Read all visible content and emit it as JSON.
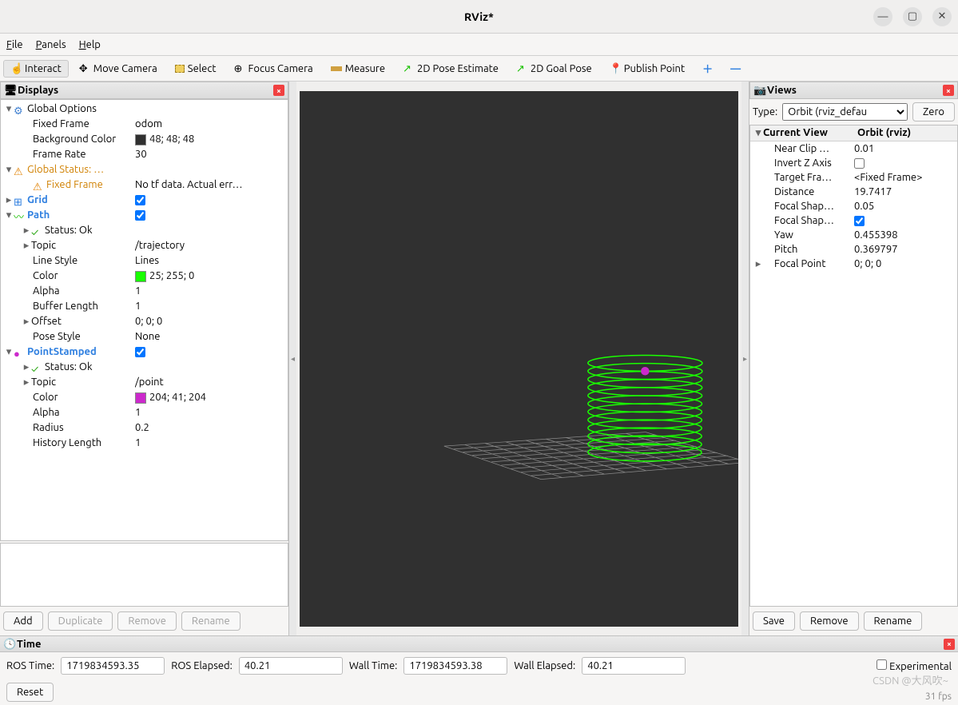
{
  "title": "RViz*",
  "menu": {
    "file": "File",
    "panels": "Panels",
    "help": "Help"
  },
  "toolbar": [
    {
      "label": "Interact",
      "icon": "interact",
      "active": true
    },
    {
      "label": "Move Camera",
      "icon": "move-camera"
    },
    {
      "label": "Select",
      "icon": "select"
    },
    {
      "label": "Focus Camera",
      "icon": "focus-camera"
    },
    {
      "label": "Measure",
      "icon": "measure"
    },
    {
      "label": "2D Pose Estimate",
      "icon": "pose-estimate"
    },
    {
      "label": "2D Goal Pose",
      "icon": "goal-pose"
    },
    {
      "label": "Publish Point",
      "icon": "publish-point"
    }
  ],
  "displays": {
    "title": "Displays",
    "global_options": {
      "label": "Global Options",
      "fixed_frame_lbl": "Fixed Frame",
      "fixed_frame_val": "odom",
      "bg_lbl": "Background Color",
      "bg_val": "48; 48; 48",
      "bg_hex": "#303030",
      "rate_lbl": "Frame Rate",
      "rate_val": "30"
    },
    "global_status": {
      "label": "Global Status: …",
      "ff_lbl": "Fixed Frame",
      "ff_val": "No tf data.  Actual err…"
    },
    "grid": {
      "label": "Grid",
      "checked": true
    },
    "path": {
      "label": "Path",
      "checked": true,
      "status_lbl": "Status: Ok",
      "topic_lbl": "Topic",
      "topic_val": "/trajectory",
      "style_lbl": "Line Style",
      "style_val": "Lines",
      "color_lbl": "Color",
      "color_val": "25; 255; 0",
      "color_hex": "#19ff00",
      "alpha_lbl": "Alpha",
      "alpha_val": "1",
      "buflen_lbl": "Buffer Length",
      "buflen_val": "1",
      "offset_lbl": "Offset",
      "offset_val": "0; 0; 0",
      "pose_lbl": "Pose Style",
      "pose_val": "None"
    },
    "point": {
      "label": "PointStamped",
      "checked": true,
      "status_lbl": "Status: Ok",
      "topic_lbl": "Topic",
      "topic_val": "/point",
      "color_lbl": "Color",
      "color_val": "204; 41; 204",
      "color_hex": "#cc29cc",
      "alpha_lbl": "Alpha",
      "alpha_val": "1",
      "radius_lbl": "Radius",
      "radius_val": "0.2",
      "hist_lbl": "History Length",
      "hist_val": "1"
    },
    "buttons": {
      "add": "Add",
      "dup": "Duplicate",
      "rem": "Remove",
      "ren": "Rename"
    }
  },
  "views": {
    "title": "Views",
    "type_lbl": "Type:",
    "type_val": "Orbit (rviz_defau",
    "zero": "Zero",
    "hdr_name": "Current View",
    "hdr_val": "Orbit (rviz)",
    "rows": [
      {
        "k": "Near Clip …",
        "v": "0.01"
      },
      {
        "k": "Invert Z Axis",
        "v": "",
        "chk": false
      },
      {
        "k": "Target Fra…",
        "v": "<Fixed Frame>"
      },
      {
        "k": "Distance",
        "v": "19.7417"
      },
      {
        "k": "Focal Shap…",
        "v": "0.05"
      },
      {
        "k": "Focal Shap…",
        "v": "",
        "chk": true
      },
      {
        "k": "Yaw",
        "v": "0.455398"
      },
      {
        "k": "Pitch",
        "v": "0.369797"
      },
      {
        "k": "Focal Point",
        "v": "0; 0; 0",
        "exp": true
      }
    ],
    "buttons": {
      "save": "Save",
      "rem": "Remove",
      "ren": "Rename"
    }
  },
  "time": {
    "title": "Time",
    "ros_time_lbl": "ROS Time:",
    "ros_time": "1719834593.35",
    "ros_elapsed_lbl": "ROS Elapsed:",
    "ros_elapsed": "40.21",
    "wall_time_lbl": "Wall Time:",
    "wall_time": "1719834593.38",
    "wall_elapsed_lbl": "Wall Elapsed:",
    "wall_elapsed": "40.21",
    "experimental": "Experimental",
    "reset": "Reset"
  },
  "viewport": {
    "bg": "#303030",
    "grid_color": "#8a8a8a",
    "spiral_color": "#19ff00",
    "point_color": "#cc29cc",
    "spiral_rings": 12
  },
  "fps": "31 fps",
  "watermark": "CSDN @大风吹~"
}
